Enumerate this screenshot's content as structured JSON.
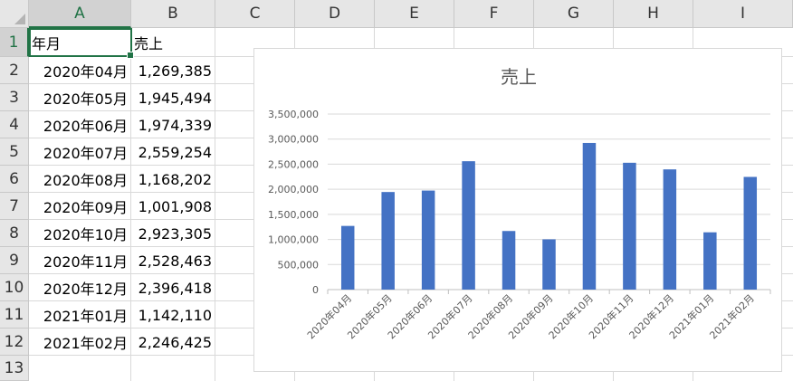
{
  "sheet": {
    "columns": [
      "A",
      "B",
      "C",
      "D",
      "E",
      "F",
      "G",
      "H",
      "I"
    ],
    "rows": [
      "1",
      "2",
      "3",
      "4",
      "5",
      "6",
      "7",
      "8",
      "9",
      "10",
      "11",
      "12",
      "13"
    ],
    "header_row": {
      "col_a": "年月",
      "col_b": "売上"
    },
    "data_rows": [
      {
        "month": "2020年04月",
        "sales": "1,269,385"
      },
      {
        "month": "2020年05月",
        "sales": "1,945,494"
      },
      {
        "month": "2020年06月",
        "sales": "1,974,339"
      },
      {
        "month": "2020年07月",
        "sales": "2,559,254"
      },
      {
        "month": "2020年08月",
        "sales": "1,168,202"
      },
      {
        "month": "2020年09月",
        "sales": "1,001,908"
      },
      {
        "month": "2020年10月",
        "sales": "2,923,305"
      },
      {
        "month": "2020年11月",
        "sales": "2,528,463"
      },
      {
        "month": "2020年12月",
        "sales": "2,396,418"
      },
      {
        "month": "2021年01月",
        "sales": "1,142,110"
      },
      {
        "month": "2021年02月",
        "sales": "2,246,425"
      }
    ],
    "selected_cell": "A1"
  },
  "chart_data": {
    "type": "bar",
    "title": "売上",
    "categories": [
      "2020年04月",
      "2020年05月",
      "2020年06月",
      "2020年07月",
      "2020年08月",
      "2020年09月",
      "2020年10月",
      "2020年11月",
      "2020年12月",
      "2021年01月",
      "2021年02月"
    ],
    "values": [
      1269385,
      1945494,
      1974339,
      2559254,
      1168202,
      1001908,
      2923305,
      2528463,
      2396418,
      1142110,
      2246425
    ],
    "y_ticks": [
      "0",
      "500,000",
      "1,000,000",
      "1,500,000",
      "2,000,000",
      "2,500,000",
      "3,000,000",
      "3,500,000"
    ],
    "ylim": [
      0,
      3500000
    ],
    "grid": true,
    "legend": "none",
    "bar_color": "#4472c4"
  }
}
